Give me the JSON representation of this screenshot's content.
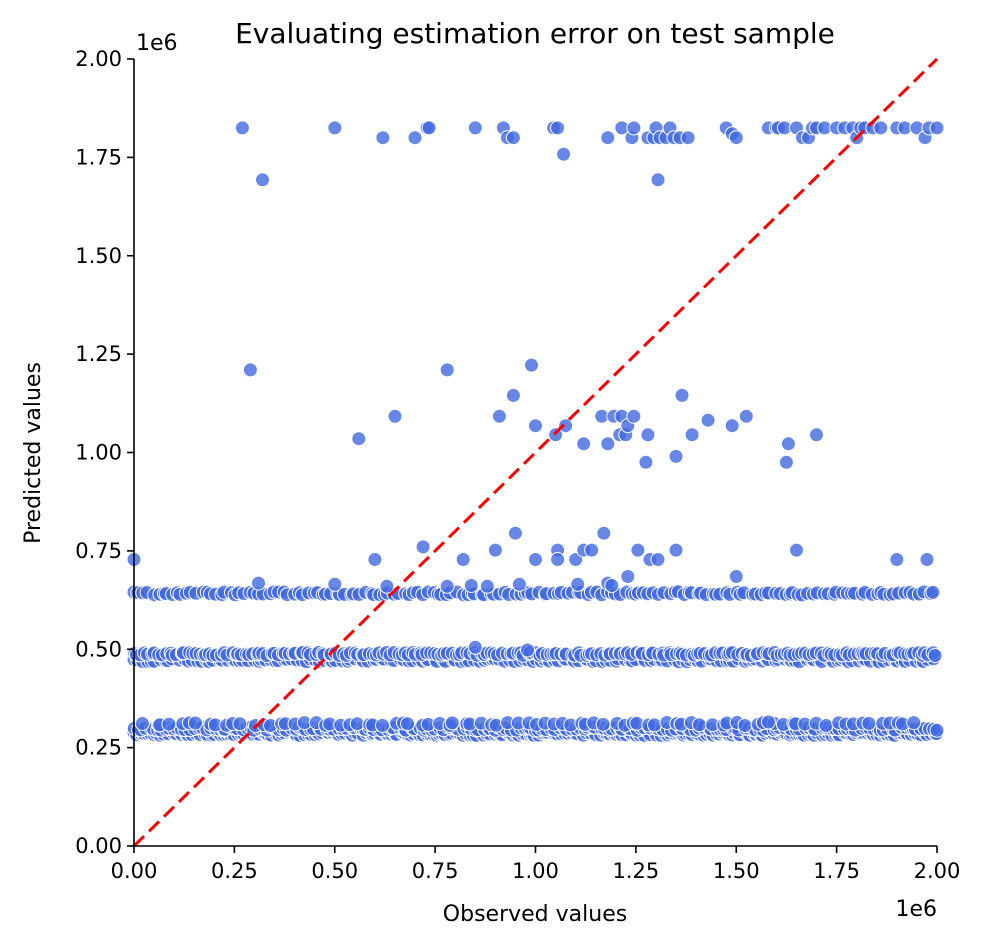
{
  "chart_data": {
    "type": "scatter",
    "title": "Evaluating estimation error on test sample",
    "xlabel": "Observed values",
    "ylabel": "Predicted values",
    "x_offset_label": "1e6",
    "y_offset_label": "1e6",
    "xlim": [
      0,
      2000000
    ],
    "ylim": [
      0,
      2000000
    ],
    "xticks": [
      0,
      250000,
      500000,
      750000,
      1000000,
      1250000,
      1500000,
      1750000,
      2000000
    ],
    "yticks": [
      0,
      250000,
      500000,
      750000,
      1000000,
      1250000,
      1500000,
      1750000,
      2000000
    ],
    "xtick_labels": [
      "0.00",
      "0.25",
      "0.50",
      "0.75",
      "1.00",
      "1.25",
      "1.50",
      "1.75",
      "2.00"
    ],
    "ytick_labels": [
      "0.00",
      "0.25",
      "0.50",
      "0.75",
      "1.00",
      "1.25",
      "1.50",
      "1.75",
      "2.00"
    ],
    "grid": false,
    "point_color": "#4169e1",
    "reference_line": {
      "x": [
        0,
        2000000
      ],
      "y": [
        0,
        2000000
      ],
      "color": "#ff0000",
      "style": "dashed"
    },
    "bands": [
      {
        "y": 285000,
        "x_start": 0,
        "x_end": 2000000,
        "step": 8000
      },
      {
        "y": 298000,
        "x_start": 0,
        "x_end": 2000000,
        "step": 10000
      },
      {
        "y": 310000,
        "x_start": 30000,
        "x_end": 1950000,
        "step": 22000
      },
      {
        "y": 472000,
        "x_start": 0,
        "x_end": 2000000,
        "step": 11000
      },
      {
        "y": 488000,
        "x_start": 0,
        "x_end": 2000000,
        "step": 9000
      },
      {
        "y": 642000,
        "x_start": 0,
        "x_end": 2000000,
        "step": 12000
      }
    ],
    "points": [
      [
        270000,
        1825000
      ],
      [
        500000,
        1825000
      ],
      [
        620000,
        1800000
      ],
      [
        700000,
        1800000
      ],
      [
        730000,
        1825000
      ],
      [
        735000,
        1825000
      ],
      [
        850000,
        1825000
      ],
      [
        920000,
        1825000
      ],
      [
        930000,
        1800000
      ],
      [
        945000,
        1800000
      ],
      [
        1045000,
        1825000
      ],
      [
        1055000,
        1825000
      ],
      [
        1070000,
        1758000
      ],
      [
        1180000,
        1800000
      ],
      [
        1215000,
        1825000
      ],
      [
        1240000,
        1800000
      ],
      [
        1245000,
        1825000
      ],
      [
        1280000,
        1800000
      ],
      [
        1295000,
        1800000
      ],
      [
        1300000,
        1825000
      ],
      [
        1310000,
        1800000
      ],
      [
        1325000,
        1800000
      ],
      [
        1335000,
        1825000
      ],
      [
        1345000,
        1800000
      ],
      [
        1360000,
        1800000
      ],
      [
        1380000,
        1800000
      ],
      [
        1475000,
        1825000
      ],
      [
        1490000,
        1810000
      ],
      [
        1500000,
        1800000
      ],
      [
        1580000,
        1825000
      ],
      [
        1600000,
        1825000
      ],
      [
        1605000,
        1825000
      ],
      [
        1620000,
        1825000
      ],
      [
        1650000,
        1825000
      ],
      [
        1665000,
        1800000
      ],
      [
        1680000,
        1800000
      ],
      [
        1690000,
        1825000
      ],
      [
        1700000,
        1825000
      ],
      [
        1720000,
        1825000
      ],
      [
        1750000,
        1825000
      ],
      [
        1770000,
        1825000
      ],
      [
        1790000,
        1825000
      ],
      [
        1800000,
        1800000
      ],
      [
        1810000,
        1825000
      ],
      [
        1820000,
        1825000
      ],
      [
        1840000,
        1825000
      ],
      [
        1860000,
        1825000
      ],
      [
        1900000,
        1825000
      ],
      [
        1920000,
        1825000
      ],
      [
        1950000,
        1825000
      ],
      [
        1970000,
        1800000
      ],
      [
        1980000,
        1825000
      ],
      [
        2000000,
        1825000
      ],
      [
        320000,
        1693000
      ],
      [
        1305000,
        1693000
      ],
      [
        290000,
        1210000
      ],
      [
        780000,
        1210000
      ],
      [
        990000,
        1222000
      ],
      [
        560000,
        1035000
      ],
      [
        650000,
        1092000
      ],
      [
        910000,
        1092000
      ],
      [
        945000,
        1145000
      ],
      [
        1000000,
        1068000
      ],
      [
        1050000,
        1045000
      ],
      [
        1075000,
        1068000
      ],
      [
        1120000,
        1022000
      ],
      [
        1165000,
        1092000
      ],
      [
        1180000,
        1022000
      ],
      [
        1195000,
        1092000
      ],
      [
        1210000,
        1045000
      ],
      [
        1215000,
        1092000
      ],
      [
        1225000,
        1045000
      ],
      [
        1230000,
        1068000
      ],
      [
        1245000,
        1092000
      ],
      [
        1275000,
        975000
      ],
      [
        1280000,
        1045000
      ],
      [
        1350000,
        990000
      ],
      [
        1365000,
        1145000
      ],
      [
        1390000,
        1045000
      ],
      [
        1430000,
        1082000
      ],
      [
        1490000,
        1068000
      ],
      [
        1525000,
        1092000
      ],
      [
        1625000,
        975000
      ],
      [
        1630000,
        1022000
      ],
      [
        1700000,
        1045000
      ],
      [
        0,
        728000
      ],
      [
        600000,
        728000
      ],
      [
        630000,
        660000
      ],
      [
        720000,
        760000
      ],
      [
        820000,
        728000
      ],
      [
        840000,
        662000
      ],
      [
        900000,
        752000
      ],
      [
        950000,
        795000
      ],
      [
        960000,
        665000
      ],
      [
        1000000,
        728000
      ],
      [
        1055000,
        752000
      ],
      [
        1055000,
        728000
      ],
      [
        1100000,
        728000
      ],
      [
        1105000,
        665000
      ],
      [
        1120000,
        752000
      ],
      [
        1140000,
        752000
      ],
      [
        1170000,
        795000
      ],
      [
        1230000,
        685000
      ],
      [
        1255000,
        752000
      ],
      [
        1285000,
        728000
      ],
      [
        1305000,
        728000
      ],
      [
        1350000,
        752000
      ],
      [
        1500000,
        685000
      ],
      [
        1650000,
        752000
      ],
      [
        1900000,
        728000
      ],
      [
        1975000,
        728000
      ],
      [
        310000,
        668000
      ],
      [
        500000,
        665000
      ],
      [
        780000,
        660000
      ],
      [
        880000,
        660000
      ],
      [
        1180000,
        668000
      ],
      [
        1190000,
        662000
      ],
      [
        850000,
        505000
      ],
      [
        980000,
        498000
      ],
      [
        1580000,
        315000
      ]
    ]
  }
}
